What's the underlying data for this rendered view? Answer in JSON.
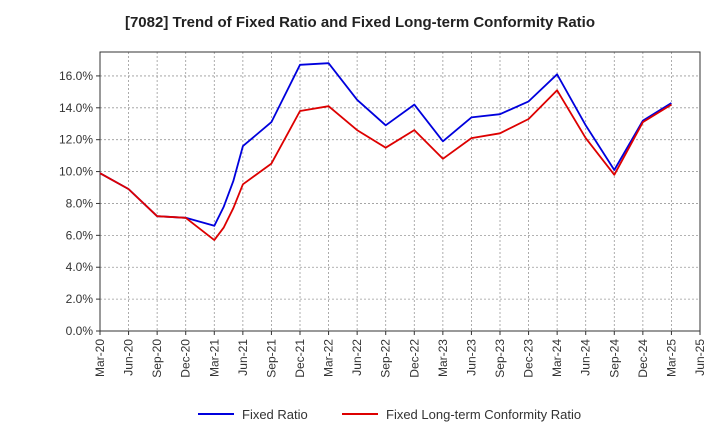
{
  "chart_data": {
    "type": "line",
    "title": "[7082]  Trend of Fixed Ratio and Fixed Long-term Conformity Ratio",
    "xlabel": "",
    "ylabel": "",
    "x_ticks": [
      "Mar-20",
      "Jun-20",
      "Sep-20",
      "Dec-20",
      "Mar-21",
      "Jun-21",
      "Sep-21",
      "Dec-21",
      "Mar-22",
      "Jun-22",
      "Sep-22",
      "Dec-22",
      "Mar-23",
      "Jun-23",
      "Sep-23",
      "Dec-23",
      "Mar-24",
      "Jun-24",
      "Sep-24",
      "Dec-24",
      "Mar-25",
      "Jun-25"
    ],
    "y_ticks": [
      "0.0%",
      "2.0%",
      "4.0%",
      "6.0%",
      "8.0%",
      "10.0%",
      "12.0%",
      "14.0%",
      "16.0%"
    ],
    "ylim": [
      0,
      17.5
    ],
    "grid": true,
    "legend_position": "bottom",
    "series": [
      {
        "name": "Fixed Ratio",
        "color": "#0000dd",
        "points": [
          [
            "Mar-20",
            9.9
          ],
          [
            "Jun-20",
            8.9
          ],
          [
            "Sep-20",
            7.2
          ],
          [
            "Dec-20",
            7.1
          ],
          [
            "Mar-21",
            6.6
          ],
          [
            "Apr-21",
            7.8
          ],
          [
            "May-21",
            9.4
          ],
          [
            "Jun-21",
            11.6
          ],
          [
            "Sep-21",
            13.1
          ],
          [
            "Dec-21",
            16.7
          ],
          [
            "Mar-22",
            16.8
          ],
          [
            "Jun-22",
            14.5
          ],
          [
            "Sep-22",
            12.9
          ],
          [
            "Dec-22",
            14.2
          ],
          [
            "Mar-23",
            11.9
          ],
          [
            "Jun-23",
            13.4
          ],
          [
            "Sep-23",
            13.6
          ],
          [
            "Dec-23",
            14.4
          ],
          [
            "Mar-24",
            16.1
          ],
          [
            "Jun-24",
            12.9
          ],
          [
            "Sep-24",
            10.1
          ],
          [
            "Dec-24",
            13.2
          ],
          [
            "Mar-25",
            14.3
          ]
        ]
      },
      {
        "name": "Fixed Long-term Conformity Ratio",
        "color": "#dd0000",
        "points": [
          [
            "Mar-20",
            9.9
          ],
          [
            "Jun-20",
            8.9
          ],
          [
            "Sep-20",
            7.2
          ],
          [
            "Dec-20",
            7.1
          ],
          [
            "Mar-21",
            5.7
          ],
          [
            "Apr-21",
            6.5
          ],
          [
            "May-21",
            7.7
          ],
          [
            "Jun-21",
            9.2
          ],
          [
            "Sep-21",
            10.5
          ],
          [
            "Dec-21",
            13.8
          ],
          [
            "Mar-22",
            14.1
          ],
          [
            "Jun-22",
            12.6
          ],
          [
            "Sep-22",
            11.5
          ],
          [
            "Dec-22",
            12.6
          ],
          [
            "Mar-23",
            10.8
          ],
          [
            "Jun-23",
            12.1
          ],
          [
            "Sep-23",
            12.4
          ],
          [
            "Dec-23",
            13.3
          ],
          [
            "Mar-24",
            15.1
          ],
          [
            "Jun-24",
            12.1
          ],
          [
            "Sep-24",
            9.8
          ],
          [
            "Dec-24",
            13.1
          ],
          [
            "Mar-25",
            14.2
          ]
        ]
      }
    ]
  }
}
